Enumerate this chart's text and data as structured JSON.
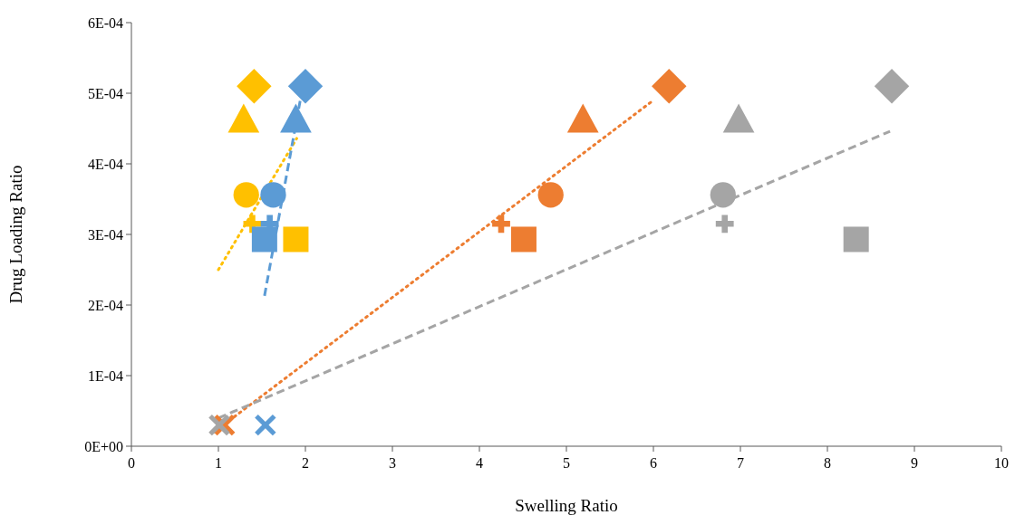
{
  "chart_data": {
    "type": "scatter",
    "xlabel": "Swelling Ratio",
    "ylabel": "Drug Loading Ratio",
    "xlim": [
      0,
      10
    ],
    "xticks": [
      0,
      1,
      2,
      3,
      4,
      5,
      6,
      7,
      8,
      9,
      10
    ],
    "ylim": [
      0,
      0.0006
    ],
    "yticks": [
      {
        "value": 0,
        "label": "0E+00"
      },
      {
        "value": 0.0001,
        "label": "1E-04"
      },
      {
        "value": 0.0002,
        "label": "2E-04"
      },
      {
        "value": 0.0003,
        "label": "3E-04"
      },
      {
        "value": 0.0004,
        "label": "4E-04"
      },
      {
        "value": 0.0005,
        "label": "5E-04"
      },
      {
        "value": 0.0006,
        "label": "6E-04"
      }
    ],
    "grid": false,
    "series": [
      {
        "type": "line",
        "color": "#ffc000",
        "line_style": "dotted",
        "marker": "none",
        "x": [
          1.0,
          1.9
        ],
        "values": [
          0.00025,
          0.000436
        ]
      },
      {
        "type": "line",
        "color": "#5b9bd5",
        "line_style": "dashed",
        "marker": "none",
        "x": [
          1.53,
          2.0
        ],
        "values": [
          0.000213,
          0.00053
        ]
      },
      {
        "type": "line",
        "color": "#ed7d31",
        "line_style": "dotted",
        "marker": "none",
        "x": [
          0.95,
          6.0
        ],
        "values": [
          2e-05,
          0.00049
        ]
      },
      {
        "type": "line",
        "color": "#a5a5a5",
        "line_style": "dashed",
        "marker": "none",
        "x": [
          1.0,
          8.72
        ],
        "values": [
          4e-05,
          0.000446
        ]
      },
      {
        "type": "scatter",
        "marker": "diamond",
        "x": [
          1.41,
          2.0,
          6.18,
          8.74
        ],
        "values": [
          0.00051,
          0.00051,
          0.00051,
          0.00051
        ],
        "colors": [
          "#ffc000",
          "#5b9bd5",
          "#ed7d31",
          "#a5a5a5"
        ]
      },
      {
        "type": "scatter",
        "marker": "triangle",
        "x": [
          1.29,
          1.89,
          5.19,
          6.98
        ],
        "values": [
          0.000463,
          0.000463,
          0.000463,
          0.000463
        ],
        "colors": [
          "#ffc000",
          "#5b9bd5",
          "#ed7d31",
          "#a5a5a5"
        ]
      },
      {
        "type": "scatter",
        "marker": "circle",
        "x": [
          1.32,
          1.63,
          4.82,
          6.8
        ],
        "values": [
          0.000356,
          0.000356,
          0.000356,
          0.000356
        ],
        "colors": [
          "#ffc000",
          "#5b9bd5",
          "#ed7d31",
          "#a5a5a5"
        ]
      },
      {
        "type": "scatter",
        "marker": "cross",
        "x": [
          1.39,
          1.59,
          4.25,
          6.82
        ],
        "values": [
          0.000315,
          0.000315,
          0.000315,
          0.000315
        ],
        "colors": [
          "#ffc000",
          "#5b9bd5",
          "#ed7d31",
          "#a5a5a5"
        ]
      },
      {
        "type": "scatter",
        "marker": "square",
        "x": [
          1.89,
          1.53,
          4.51,
          8.33
        ],
        "values": [
          0.000293,
          0.000293,
          0.000293,
          0.000293
        ],
        "colors": [
          "#ffc000",
          "#5b9bd5",
          "#ed7d31",
          "#a5a5a5"
        ]
      },
      {
        "type": "scatter",
        "marker": "x",
        "x": [
          1.54,
          1.07,
          1.01
        ],
        "values": [
          3e-05,
          3e-05,
          3e-05
        ],
        "colors": [
          "#5b9bd5",
          "#ed7d31",
          "#a5a5a5"
        ]
      }
    ]
  }
}
